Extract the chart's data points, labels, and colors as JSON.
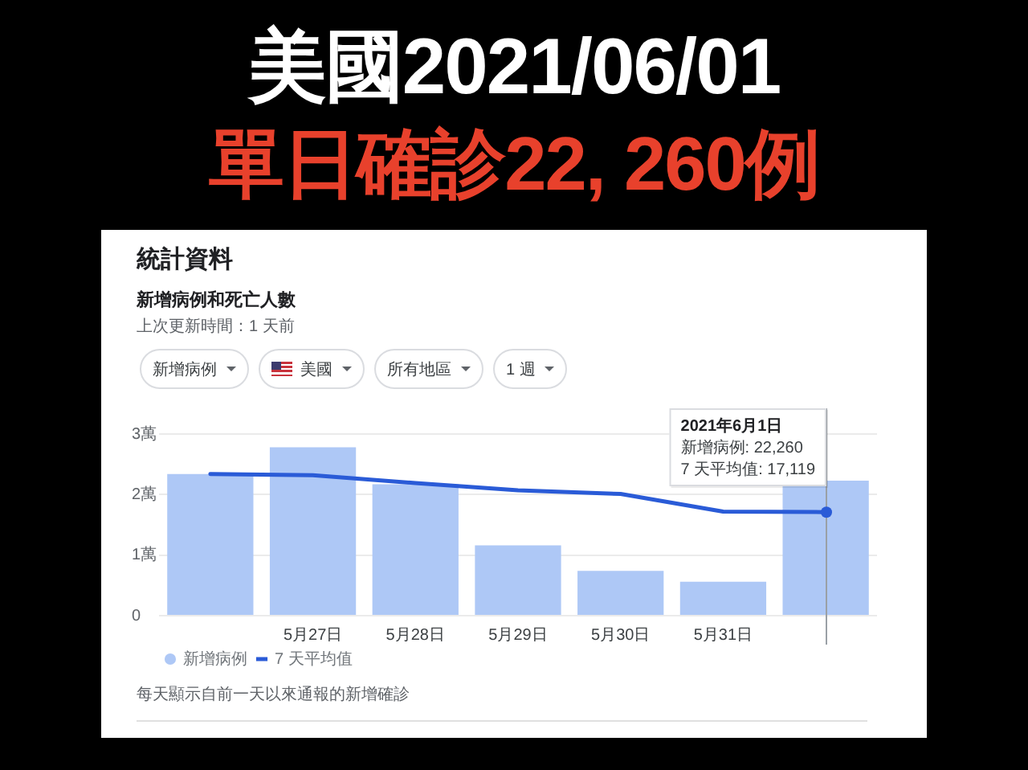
{
  "chart_data": [
    {
      "type": "other",
      "title": "美國2021/06/01",
      "subtitle": "單日確診22, 260例"
    },
    {
      "type": "bar",
      "title": "統計資料",
      "subtitle": "新增病例和死亡人數",
      "x": [
        "2021-05-26",
        "2021-05-27",
        "2021-05-28",
        "2021-05-29",
        "2021-05-30",
        "2021-05-31",
        "2021-06-01"
      ],
      "series": [
        {
          "name": "新增病例",
          "type": "bar",
          "color": "#aec8f6",
          "values": [
            2.34,
            2.78,
            2.17,
            1.16,
            0.74,
            0.56,
            2.23
          ]
        },
        {
          "name": "7 天平均值",
          "type": "line",
          "color": "#2a5bd7",
          "values": [
            2.34,
            2.32,
            2.19,
            2.07,
            2.01,
            1.72,
            1.71
          ]
        }
      ],
      "xlim": [
        "2021-05-25T12:00",
        "2021-06-01T12:00"
      ],
      "xticks": [
        {
          "value": "2021-05-27",
          "label": "5月27日"
        },
        {
          "value": "2021-05-28",
          "label": "5月28日"
        },
        {
          "value": "2021-05-29",
          "label": "5月29日"
        },
        {
          "value": "2021-05-30",
          "label": "5月30日"
        },
        {
          "value": "2021-05-31",
          "label": "5月31日"
        }
      ],
      "ylim": [
        0,
        3
      ],
      "yticks": [
        0,
        {
          "value": 1,
          "label": "1萬"
        },
        {
          "value": 2,
          "label": "2萬"
        },
        {
          "value": 3,
          "label": "3萬"
        }
      ],
      "grid": "y",
      "legend": "bottom left",
      "ref_lines": [
        {
          "axis": "x",
          "value": "2021-06-01",
          "color": "#9aa0a6"
        }
      ],
      "annotations": [
        "上次更新時間：1 天前",
        "新增病例",
        "美國",
        "所有地區",
        "1 週",
        {
          "text": "2021年6月1日",
          "x": "2021-06-01"
        },
        {
          "text": "新增病例: 22,260",
          "x": "2021-06-01"
        },
        {
          "text": "7 天平均值: 17,119",
          "x": "2021-06-01",
          "y": 1.71
        },
        "每天顯示自前一天以來通報的新增確診"
      ]
    }
  ]
}
